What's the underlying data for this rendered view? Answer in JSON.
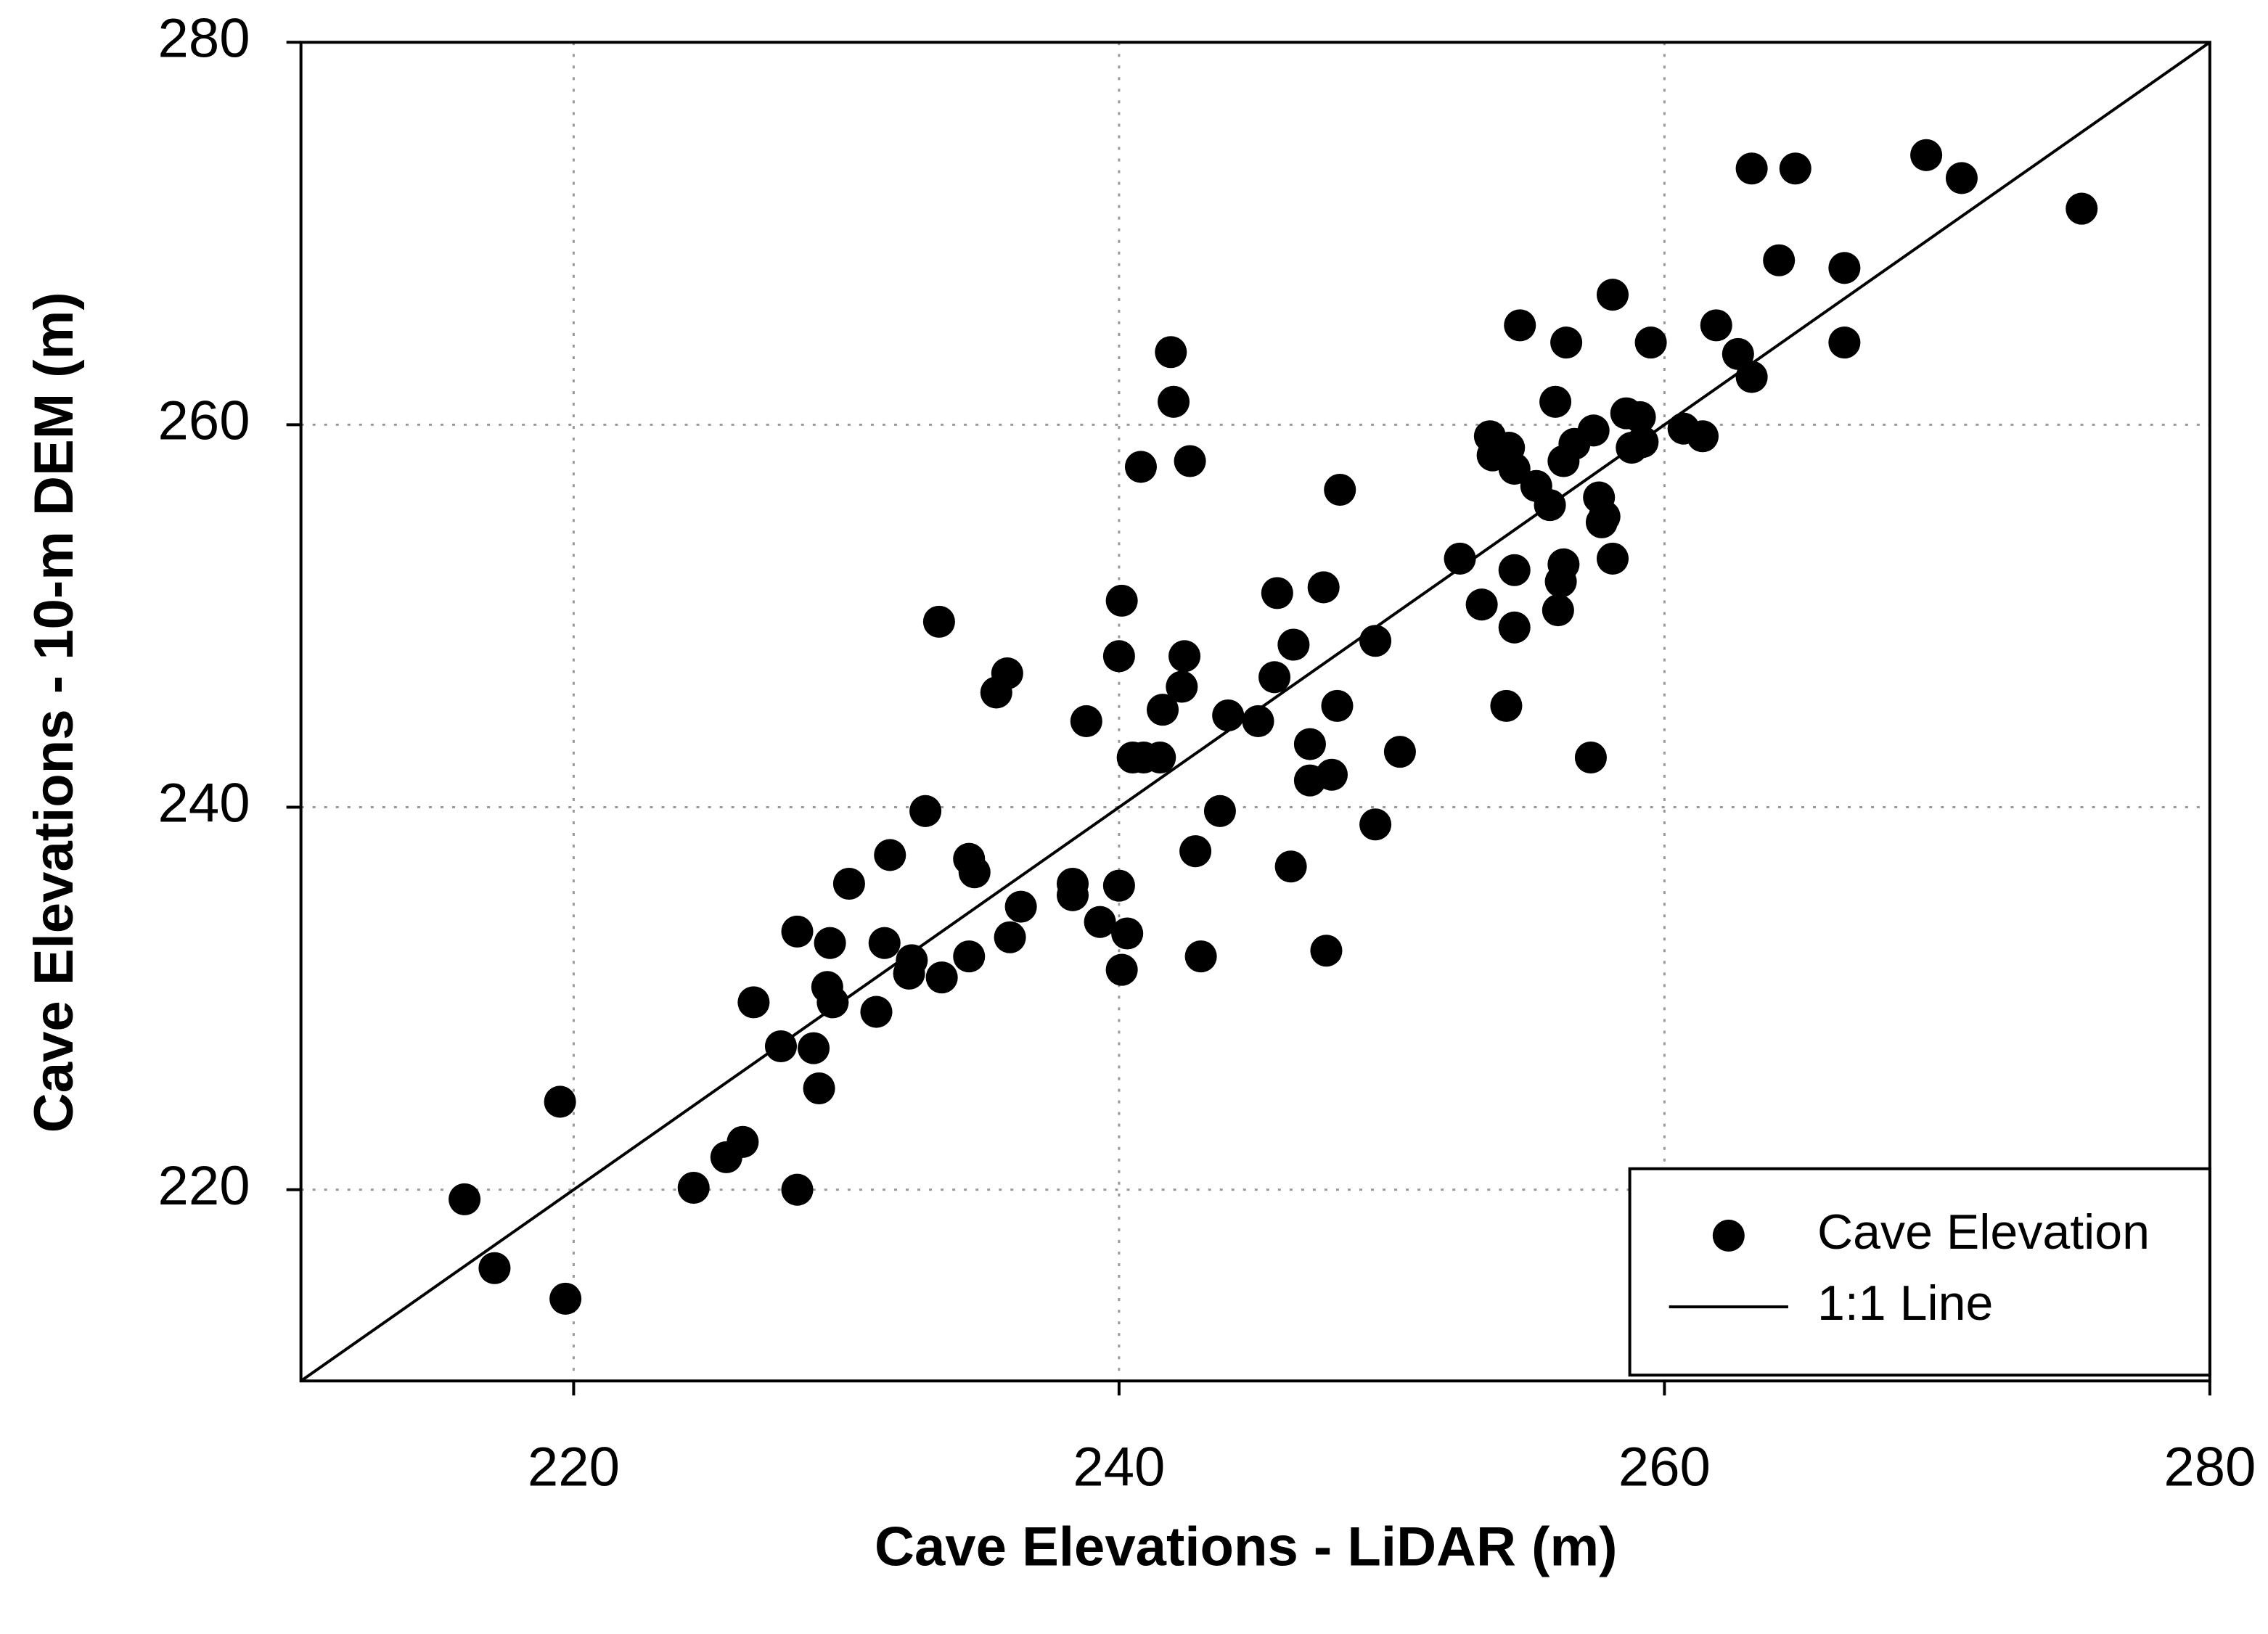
{
  "chart_data": {
    "type": "scatter",
    "x_label": "Cave Elevations - LiDAR (m)",
    "y_label": "Cave Elevations - 10-m DEM (m)",
    "xlim": [
      210,
      280
    ],
    "ylim": [
      210,
      280
    ],
    "xticks": [
      220,
      240,
      260,
      280
    ],
    "yticks": [
      220,
      240,
      260,
      280
    ],
    "grid": true,
    "legend": "lower right",
    "series": [
      {
        "name": "Cave Elevation",
        "type": "scatter",
        "color": "#000000",
        "x": [
          216.0,
          217.1,
          219.5,
          219.7,
          224.4,
          225.6,
          226.2,
          226.6,
          227.6,
          228.2,
          228.2,
          228.8,
          229.0,
          229.4,
          229.3,
          229.5,
          230.1,
          231.1,
          231.4,
          231.6,
          232.3,
          232.4,
          232.9,
          233.4,
          233.5,
          234.5,
          234.7,
          234.5,
          235.5,
          235.9,
          236.0,
          236.4,
          238.3,
          238.3,
          238.8,
          239.3,
          240.0,
          240.1,
          240.0,
          240.3,
          240.1,
          240.5,
          240.8,
          240.9,
          241.5,
          241.6,
          241.9,
          242.0,
          242.3,
          242.4,
          242.6,
          242.8,
          243.0,
          243.7,
          244.0,
          245.1,
          245.7,
          245.8,
          246.3,
          246.4,
          247.0,
          247.0,
          247.5,
          247.6,
          247.8,
          248.0,
          248.1,
          249.4,
          249.4,
          250.3,
          252.5,
          253.3,
          253.6,
          253.7,
          254.2,
          254.3,
          254.5,
          254.5,
          254.5,
          254.7,
          255.3,
          255.8,
          256.0,
          256.1,
          256.2,
          256.3,
          256.3,
          256.4,
          256.7,
          257.3,
          257.4,
          257.6,
          257.7,
          257.8,
          258.1,
          258.1,
          258.6,
          258.8,
          259.1,
          259.2,
          259.5,
          260.7,
          261.4,
          261.9,
          262.7,
          263.2,
          263.2,
          264.2,
          264.8,
          266.6,
          266.6,
          269.6,
          270.9,
          275.3
        ],
        "values": [
          219.5,
          215.9,
          224.6,
          214.3,
          220.1,
          221.7,
          222.5,
          229.8,
          227.5,
          233.5,
          220.0,
          227.4,
          225.3,
          232.9,
          230.6,
          229.8,
          236.0,
          229.3,
          232.9,
          237.5,
          231.3,
          232.0,
          239.8,
          249.7,
          231.1,
          237.3,
          236.6,
          232.2,
          246.0,
          247.0,
          233.2,
          234.8,
          236.0,
          235.4,
          244.5,
          234.0,
          235.9,
          250.8,
          247.9,
          233.4,
          231.5,
          242.6,
          257.8,
          242.6,
          242.6,
          245.1,
          263.8,
          261.2,
          246.3,
          247.9,
          258.1,
          237.7,
          232.2,
          239.8,
          244.8,
          244.5,
          246.8,
          251.2,
          236.9,
          248.5,
          243.3,
          241.4,
          251.5,
          232.5,
          241.7,
          245.3,
          256.6,
          239.1,
          248.7,
          242.9,
          253.0,
          250.6,
          259.4,
          258.4,
          245.3,
          258.8,
          249.4,
          257.7,
          252.4,
          265.2,
          256.8,
          255.8,
          261.2,
          250.3,
          251.8,
          252.7,
          258.1,
          264.3,
          259.0,
          242.6,
          259.7,
          256.2,
          254.9,
          255.2,
          253.0,
          266.8,
          260.6,
          258.8,
          260.4,
          259.1,
          264.3,
          259.8,
          259.4,
          265.2,
          263.7,
          273.4,
          262.5,
          268.6,
          273.4,
          268.2,
          264.3,
          274.1,
          272.9,
          271.3
        ]
      },
      {
        "name": "1:1 Line",
        "type": "line",
        "color": "#000000",
        "x": [
          210,
          280
        ],
        "values": [
          210,
          280
        ]
      }
    ]
  }
}
